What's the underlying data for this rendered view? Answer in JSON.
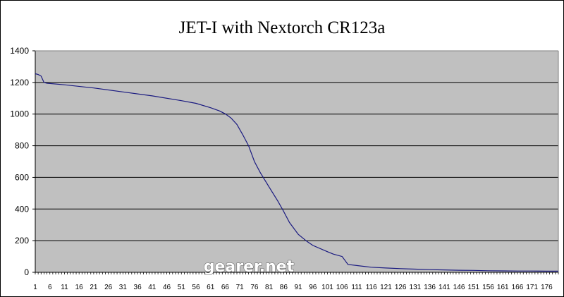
{
  "chart_data": {
    "type": "line",
    "title": "JET-I with Nextorch CR123a",
    "xlabel": "",
    "ylabel": "",
    "ylim": [
      0,
      1400
    ],
    "xlim": [
      1,
      180
    ],
    "y_ticks": [
      0,
      200,
      400,
      600,
      800,
      1000,
      1200,
      1400
    ],
    "x_tick_start": 1,
    "x_tick_step": 5,
    "x_tick_end": 176,
    "grid": true,
    "legend": "none",
    "plot_background": "#c0c0c0",
    "line_color": "#1a1a80",
    "series": [
      {
        "points": [
          [
            1,
            1255
          ],
          [
            2,
            1250
          ],
          [
            3,
            1240
          ],
          [
            4,
            1200
          ],
          [
            5,
            1195
          ],
          [
            11,
            1185
          ],
          [
            21,
            1165
          ],
          [
            31,
            1140
          ],
          [
            41,
            1115
          ],
          [
            51,
            1085
          ],
          [
            56,
            1068
          ],
          [
            61,
            1040
          ],
          [
            64,
            1020
          ],
          [
            66,
            1002
          ],
          [
            68,
            975
          ],
          [
            70,
            935
          ],
          [
            72,
            870
          ],
          [
            74,
            800
          ],
          [
            76,
            700
          ],
          [
            78,
            630
          ],
          [
            81,
            540
          ],
          [
            84,
            450
          ],
          [
            86,
            385
          ],
          [
            88,
            315
          ],
          [
            91,
            240
          ],
          [
            94,
            195
          ],
          [
            96,
            170
          ],
          [
            101,
            130
          ],
          [
            103,
            115
          ],
          [
            106,
            100
          ],
          [
            107,
            75
          ],
          [
            108,
            50
          ],
          [
            111,
            43
          ],
          [
            116,
            32
          ],
          [
            121,
            27
          ],
          [
            126,
            23
          ],
          [
            131,
            20
          ],
          [
            136,
            17
          ],
          [
            141,
            15
          ],
          [
            146,
            13
          ],
          [
            151,
            12
          ],
          [
            156,
            10
          ],
          [
            161,
            9
          ],
          [
            166,
            8
          ],
          [
            171,
            8
          ],
          [
            176,
            7
          ],
          [
            180,
            7
          ]
        ]
      }
    ]
  },
  "watermark": "gearer.net"
}
